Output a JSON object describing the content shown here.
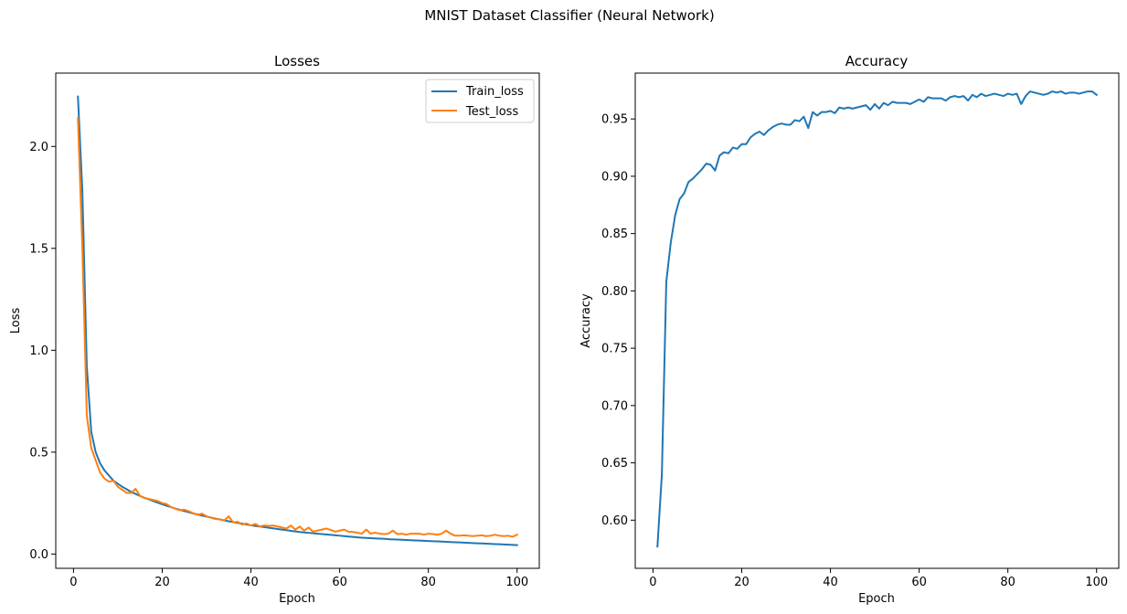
{
  "figure": {
    "suptitle": "MNIST Dataset Classifier (Neural Network)"
  },
  "chart_data": [
    {
      "type": "line",
      "title": "Losses",
      "xlabel": "Epoch",
      "ylabel": "Loss",
      "xlim": [
        -4,
        105
      ],
      "ylim": [
        -0.07,
        2.36
      ],
      "xticks": [
        0,
        20,
        40,
        60,
        80,
        100
      ],
      "yticks": [
        0.0,
        0.5,
        1.0,
        1.5,
        2.0
      ],
      "xtick_labels": [
        "0",
        "20",
        "40",
        "60",
        "80",
        "100"
      ],
      "ytick_labels": [
        "0.0",
        "0.5",
        "1.0",
        "1.5",
        "2.0"
      ],
      "legend_position": "top-right",
      "grid": false,
      "x": [
        1,
        2,
        3,
        4,
        5,
        6,
        7,
        8,
        9,
        10,
        11,
        12,
        13,
        14,
        15,
        16,
        17,
        18,
        19,
        20,
        21,
        22,
        23,
        24,
        25,
        26,
        27,
        28,
        29,
        30,
        31,
        32,
        33,
        34,
        35,
        36,
        37,
        38,
        39,
        40,
        41,
        42,
        43,
        44,
        45,
        46,
        47,
        48,
        49,
        50,
        51,
        52,
        53,
        54,
        55,
        56,
        57,
        58,
        59,
        60,
        61,
        62,
        63,
        64,
        65,
        66,
        67,
        68,
        69,
        70,
        71,
        72,
        73,
        74,
        75,
        76,
        77,
        78,
        79,
        80,
        81,
        82,
        83,
        84,
        85,
        86,
        87,
        88,
        89,
        90,
        91,
        92,
        93,
        94,
        95,
        96,
        97,
        98,
        99,
        100
      ],
      "series": [
        {
          "name": "Train_loss",
          "color": "#1f77b4",
          "values": [
            2.245,
            1.78,
            0.92,
            0.6,
            0.5,
            0.445,
            0.41,
            0.385,
            0.36,
            0.345,
            0.33,
            0.318,
            0.305,
            0.295,
            0.285,
            0.276,
            0.268,
            0.26,
            0.252,
            0.244,
            0.237,
            0.23,
            0.223,
            0.217,
            0.211,
            0.205,
            0.199,
            0.194,
            0.189,
            0.184,
            0.179,
            0.174,
            0.17,
            0.165,
            0.161,
            0.157,
            0.153,
            0.149,
            0.145,
            0.141,
            0.138,
            0.135,
            0.132,
            0.129,
            0.126,
            0.123,
            0.12,
            0.117,
            0.114,
            0.111,
            0.108,
            0.106,
            0.104,
            0.102,
            0.1,
            0.098,
            0.096,
            0.094,
            0.092,
            0.09,
            0.088,
            0.086,
            0.084,
            0.082,
            0.08,
            0.079,
            0.078,
            0.077,
            0.076,
            0.075,
            0.073,
            0.072,
            0.071,
            0.07,
            0.069,
            0.068,
            0.067,
            0.066,
            0.065,
            0.064,
            0.063,
            0.062,
            0.061,
            0.06,
            0.059,
            0.058,
            0.057,
            0.056,
            0.055,
            0.054,
            0.053,
            0.052,
            0.051,
            0.05,
            0.049,
            0.048,
            0.047,
            0.046,
            0.045,
            0.044
          ]
        },
        {
          "name": "Test_loss",
          "color": "#ff7f0e",
          "values": [
            2.14,
            1.5,
            0.68,
            0.52,
            0.46,
            0.4,
            0.37,
            0.355,
            0.36,
            0.33,
            0.315,
            0.3,
            0.3,
            0.32,
            0.285,
            0.275,
            0.27,
            0.265,
            0.26,
            0.25,
            0.245,
            0.23,
            0.222,
            0.215,
            0.218,
            0.21,
            0.2,
            0.193,
            0.198,
            0.185,
            0.178,
            0.172,
            0.17,
            0.165,
            0.185,
            0.155,
            0.158,
            0.145,
            0.15,
            0.14,
            0.148,
            0.135,
            0.14,
            0.138,
            0.14,
            0.135,
            0.13,
            0.125,
            0.14,
            0.12,
            0.135,
            0.115,
            0.13,
            0.11,
            0.115,
            0.12,
            0.125,
            0.118,
            0.11,
            0.115,
            0.12,
            0.11,
            0.108,
            0.105,
            0.1,
            0.12,
            0.1,
            0.105,
            0.1,
            0.098,
            0.1,
            0.115,
            0.098,
            0.1,
            0.095,
            0.1,
            0.1,
            0.1,
            0.095,
            0.1,
            0.098,
            0.095,
            0.1,
            0.115,
            0.1,
            0.09,
            0.09,
            0.092,
            0.09,
            0.088,
            0.09,
            0.092,
            0.088,
            0.09,
            0.095,
            0.09,
            0.088,
            0.09,
            0.085,
            0.095
          ]
        }
      ]
    },
    {
      "type": "line",
      "title": "Accuracy",
      "xlabel": "Epoch",
      "ylabel": "Accuracy",
      "xlim": [
        -4,
        105
      ],
      "ylim": [
        0.558,
        0.99
      ],
      "xticks": [
        0,
        20,
        40,
        60,
        80,
        100
      ],
      "yticks": [
        0.6,
        0.65,
        0.7,
        0.75,
        0.8,
        0.85,
        0.9,
        0.95
      ],
      "xtick_labels": [
        "0",
        "20",
        "40",
        "60",
        "80",
        "100"
      ],
      "ytick_labels": [
        "0.60",
        "0.65",
        "0.70",
        "0.75",
        "0.80",
        "0.85",
        "0.90",
        "0.95"
      ],
      "grid": false,
      "x": [
        1,
        2,
        3,
        4,
        5,
        6,
        7,
        8,
        9,
        10,
        11,
        12,
        13,
        14,
        15,
        16,
        17,
        18,
        19,
        20,
        21,
        22,
        23,
        24,
        25,
        26,
        27,
        28,
        29,
        30,
        31,
        32,
        33,
        34,
        35,
        36,
        37,
        38,
        39,
        40,
        41,
        42,
        43,
        44,
        45,
        46,
        47,
        48,
        49,
        50,
        51,
        52,
        53,
        54,
        55,
        56,
        57,
        58,
        59,
        60,
        61,
        62,
        63,
        64,
        65,
        66,
        67,
        68,
        69,
        70,
        71,
        72,
        73,
        74,
        75,
        76,
        77,
        78,
        79,
        80,
        81,
        82,
        83,
        84,
        85,
        86,
        87,
        88,
        89,
        90,
        91,
        92,
        93,
        94,
        95,
        96,
        97,
        98,
        99,
        100
      ],
      "series": [
        {
          "color": "#1f77b4",
          "values": [
            0.577,
            0.64,
            0.808,
            0.842,
            0.866,
            0.88,
            0.885,
            0.895,
            0.898,
            0.902,
            0.906,
            0.911,
            0.91,
            0.905,
            0.918,
            0.921,
            0.92,
            0.925,
            0.924,
            0.928,
            0.928,
            0.934,
            0.937,
            0.939,
            0.936,
            0.94,
            0.943,
            0.945,
            0.946,
            0.945,
            0.945,
            0.949,
            0.948,
            0.952,
            0.942,
            0.956,
            0.953,
            0.956,
            0.956,
            0.957,
            0.955,
            0.96,
            0.959,
            0.96,
            0.959,
            0.96,
            0.961,
            0.962,
            0.958,
            0.963,
            0.959,
            0.964,
            0.962,
            0.965,
            0.964,
            0.964,
            0.964,
            0.963,
            0.965,
            0.967,
            0.965,
            0.969,
            0.968,
            0.968,
            0.968,
            0.966,
            0.969,
            0.97,
            0.969,
            0.97,
            0.966,
            0.971,
            0.969,
            0.972,
            0.97,
            0.971,
            0.972,
            0.971,
            0.97,
            0.972,
            0.971,
            0.972,
            0.963,
            0.97,
            0.974,
            0.973,
            0.972,
            0.971,
            0.972,
            0.974,
            0.973,
            0.974,
            0.972,
            0.973,
            0.973,
            0.972,
            0.973,
            0.974,
            0.974,
            0.971
          ]
        }
      ]
    }
  ]
}
